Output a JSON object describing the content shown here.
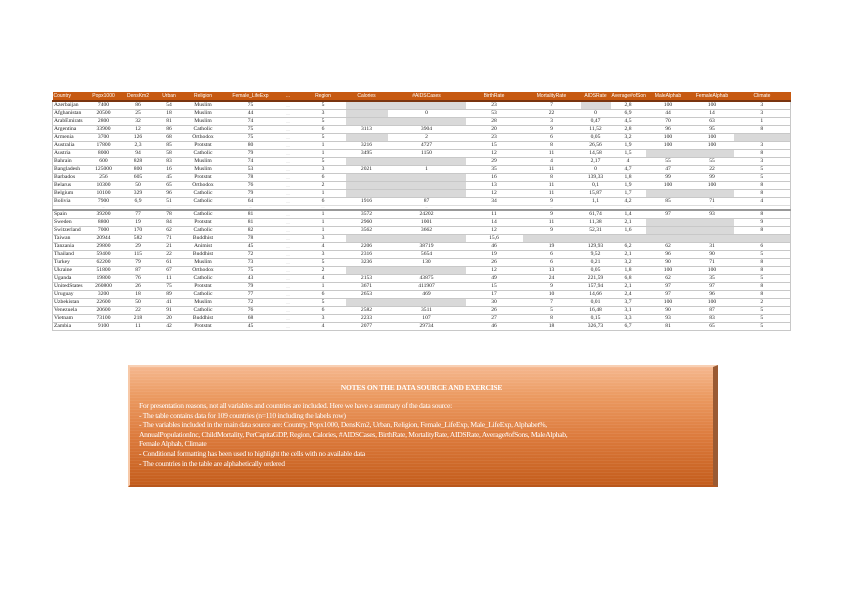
{
  "table": {
    "headers": [
      "Country",
      "Popx1000",
      "DensKm2",
      "Urban",
      "Religion",
      "Female_LifeExp",
      "...",
      "Region",
      "Calories",
      "#AIDSCases",
      "BirthRate",
      "MortalityRate",
      "AIDSRate",
      "Average#ofSons",
      "MaleAlphab",
      "FemaleAlphab",
      "Climate"
    ],
    "blank_color": "#d9d9d9",
    "header_color": "#c65911",
    "rows_top": [
      [
        "Azerbaijan",
        "7400",
        "86",
        "54",
        "Muslim",
        "75",
        "....",
        "5",
        null,
        null,
        "23",
        "7",
        null,
        "2,8",
        "100",
        "100",
        "3"
      ],
      [
        "Afghanistan",
        "20500",
        "25",
        "18",
        "Muslim",
        "44",
        "....",
        "3",
        null,
        "0",
        "53",
        "22",
        "0",
        "6,9",
        "44",
        "14",
        "3"
      ],
      [
        "ArabEmirats",
        "2800",
        "32",
        "81",
        "Muslim",
        "74",
        "....",
        "5",
        null,
        null,
        "28",
        "3",
        "0,47",
        "4,5",
        "70",
        "63",
        "1"
      ],
      [
        "Argentina",
        "33900",
        "12",
        "86",
        "Catholic",
        "75",
        "....",
        "6",
        "3113",
        "3904",
        "20",
        "9",
        "11,52",
        "2,8",
        "96",
        "95",
        "8"
      ],
      [
        "Armenia",
        "3700",
        "126",
        "68",
        "Orthodox",
        "75",
        "....",
        "5",
        null,
        "2",
        "23",
        "6",
        "0,05",
        "3,2",
        "100",
        "100",
        null
      ],
      [
        "Australia",
        "17800",
        "2,3",
        "85",
        "Protstnt",
        "80",
        "....",
        "1",
        "3216",
        "4727",
        "15",
        "8",
        "26,56",
        "1,9",
        "100",
        "100",
        "3"
      ],
      [
        "Austria",
        "8000",
        "94",
        "58",
        "Catholic",
        "79",
        "....",
        "1",
        "3495",
        "1150",
        "12",
        "11",
        "14,58",
        "1,5",
        null,
        null,
        "8"
      ],
      [
        "Bahrain",
        "600",
        "828",
        "83",
        "Muslim",
        "74",
        "....",
        "5",
        null,
        null,
        "29",
        "4",
        "2,17",
        "4",
        "55",
        "55",
        "3"
      ],
      [
        "Bangladesh",
        "125000",
        "800",
        "16",
        "Muslim",
        "53",
        "....",
        "3",
        "2021",
        "1",
        "35",
        "11",
        "0",
        "4,7",
        "47",
        "22",
        "5"
      ],
      [
        "Barbados",
        "256",
        "605",
        "45",
        "Protstnt",
        "78",
        "....",
        "6",
        null,
        null,
        "16",
        "8",
        "139,33",
        "1,8",
        "99",
        "99",
        "5"
      ],
      [
        "Belarus",
        "10300",
        "50",
        "65",
        "Orthodox",
        "76",
        "....",
        "2",
        null,
        null,
        "13",
        "11",
        "0,1",
        "1,9",
        "100",
        "100",
        "8"
      ],
      [
        "Belgium",
        "10100",
        "329",
        "96",
        "Catholic",
        "79",
        "....",
        "1",
        null,
        null,
        "12",
        "11",
        "15,87",
        "1,7",
        null,
        null,
        "8"
      ],
      [
        "Bolivia",
        "7900",
        "6,9",
        "51",
        "Catholic",
        "64",
        "....",
        "6",
        "1916",
        "87",
        "34",
        "9",
        "1,1",
        "4,2",
        "85",
        "71",
        "4"
      ]
    ],
    "separator": "....",
    "rows_bottom": [
      [
        "Spain",
        "39200",
        "77",
        "78",
        "Catholic",
        "81",
        "....",
        "1",
        "3572",
        "24202",
        "11",
        "9",
        "61,74",
        "1,4",
        "97",
        "93",
        "8"
      ],
      [
        "Sweden",
        "8800",
        "19",
        "84",
        "Protstnt",
        "81",
        "....",
        "1",
        "2960",
        "1001",
        "14",
        "11",
        "11,38",
        "2,1",
        null,
        null,
        "9"
      ],
      [
        "Switzerland",
        "7000",
        "170",
        "62",
        "Catholic",
        "82",
        "....",
        "1",
        "3562",
        "3662",
        "12",
        "9",
        "52,31",
        "1,6",
        null,
        null,
        "8"
      ],
      [
        "Taiwan",
        "20944",
        "582",
        "71",
        "Buddhist",
        "78",
        "....",
        "3",
        null,
        null,
        "15,6",
        null,
        null,
        null,
        null,
        null,
        null
      ],
      [
        "Tanzania",
        "29800",
        "29",
        "21",
        "Animist",
        "45",
        "....",
        "4",
        "2206",
        "38719",
        "46",
        "19",
        "129,93",
        "6,2",
        "62",
        "31",
        "6"
      ],
      [
        "Thailand",
        "59400",
        "115",
        "22",
        "Buddhist",
        "72",
        "....",
        "3",
        "2316",
        "5654",
        "19",
        "6",
        "9,52",
        "2,1",
        "96",
        "90",
        "5"
      ],
      [
        "Turkey",
        "62200",
        "79",
        "61",
        "Muslim",
        "73",
        "....",
        "5",
        "3236",
        "130",
        "26",
        "6",
        "0,21",
        "3,2",
        "90",
        "71",
        "8"
      ],
      [
        "Ukraine",
        "51800",
        "87",
        "67",
        "Orthodox",
        "75",
        "....",
        "2",
        null,
        null,
        "12",
        "13",
        "0,05",
        "1,8",
        "100",
        "100",
        "8"
      ],
      [
        "Uganda",
        "19800",
        "76",
        "11",
        "Catholic",
        "43",
        "....",
        "4",
        "2153",
        "43875",
        "49",
        "24",
        "221,59",
        "6,8",
        "62",
        "35",
        "5"
      ],
      [
        "UnitedStates",
        "260800",
        "26",
        "75",
        "Protstnt",
        "79",
        "....",
        "1",
        "3671",
        "411907",
        "15",
        "9",
        "157,94",
        "2,1",
        "97",
        "97",
        "8"
      ],
      [
        "Uruguay",
        "3200",
        "18",
        "89",
        "Catholic",
        "77",
        "....",
        "6",
        "2653",
        "469",
        "17",
        "10",
        "14,66",
        "2,4",
        "97",
        "96",
        "8"
      ],
      [
        "Uzbekistan",
        "22600",
        "50",
        "41",
        "Muslim",
        "72",
        "....",
        "5",
        null,
        null,
        "30",
        "7",
        "0,01",
        "3,7",
        "100",
        "100",
        "2"
      ],
      [
        "Venezuela",
        "20600",
        "22",
        "91",
        "Catholic",
        "76",
        "....",
        "6",
        "2582",
        "3511",
        "26",
        "5",
        "16,48",
        "3,1",
        "90",
        "87",
        "5"
      ],
      [
        "Vietnam",
        "73100",
        "218",
        "20",
        "Buddhist",
        "68",
        "....",
        "3",
        "2233",
        "107",
        "27",
        "8",
        "0,15",
        "3,3",
        "93",
        "83",
        "5"
      ],
      [
        "Zambia",
        "9100",
        "11",
        "42",
        "Protstnt",
        "45",
        "....",
        "4",
        "2077",
        "29734",
        "46",
        "18",
        "326,73",
        "6,7",
        "81",
        "65",
        "5"
      ]
    ]
  },
  "notes": {
    "title": "NOTES ON THE DATA SOURCE AND EXERCISE",
    "lines": [
      "For presentation reasons, not all variables and countries are included. Here we have a summary of the data source:",
      "-  The table contains data for 109 countries (n=110 including the labels row)",
      "- The variables included in the main data source are: Country, Popx1000, DensKm2, Urban, Religion, Female_LifeExp, Male_LifeExp, Alphabet%,",
      "AnnualPopulationInc, ChildMortality, PerCapitaGDP, Region, Calories, #AIDSCases, BirthRate, MortalityRate, AIDSRate, Average#ofSons, MaleAlphab,",
      "Female Alphab, Climate",
      "- Conditional formatting has been used to highlight the  cells with no available data",
      "- The countries in the table are alphabetically ordered"
    ]
  }
}
